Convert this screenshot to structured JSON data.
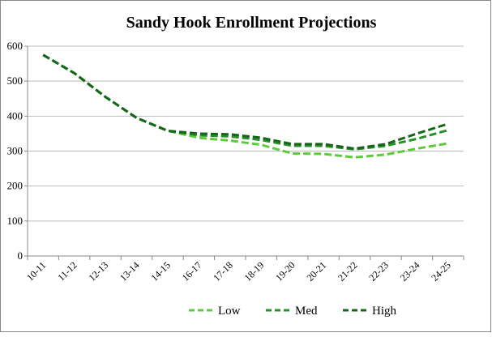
{
  "chart_data": {
    "type": "line",
    "title": "Sandy Hook Enrollment Projections",
    "categories": [
      "10-11",
      "11-12",
      "12-13",
      "13-14",
      "14-15",
      "16-17",
      "17-18",
      "18-19",
      "19-20",
      "20-21",
      "21-22",
      "22-23",
      "23-24",
      "24-25"
    ],
    "series": [
      {
        "name": "Low",
        "color": "#5ccc3c",
        "values": [
          575,
          523,
          455,
          395,
          358,
          338,
          330,
          318,
          293,
          292,
          282,
          290,
          307,
          322
        ]
      },
      {
        "name": "Med",
        "color": "#2a8f2a",
        "values": [
          575,
          523,
          455,
          395,
          358,
          345,
          342,
          332,
          315,
          315,
          305,
          315,
          335,
          360
        ]
      },
      {
        "name": "High",
        "color": "#16661a",
        "values": [
          575,
          523,
          455,
          395,
          358,
          350,
          348,
          338,
          320,
          320,
          307,
          320,
          350,
          378
        ]
      }
    ],
    "ylim": [
      0,
      600
    ],
    "yticks": [
      0,
      100,
      200,
      300,
      400,
      500,
      600
    ],
    "grid": true,
    "legend": "bottom"
  }
}
